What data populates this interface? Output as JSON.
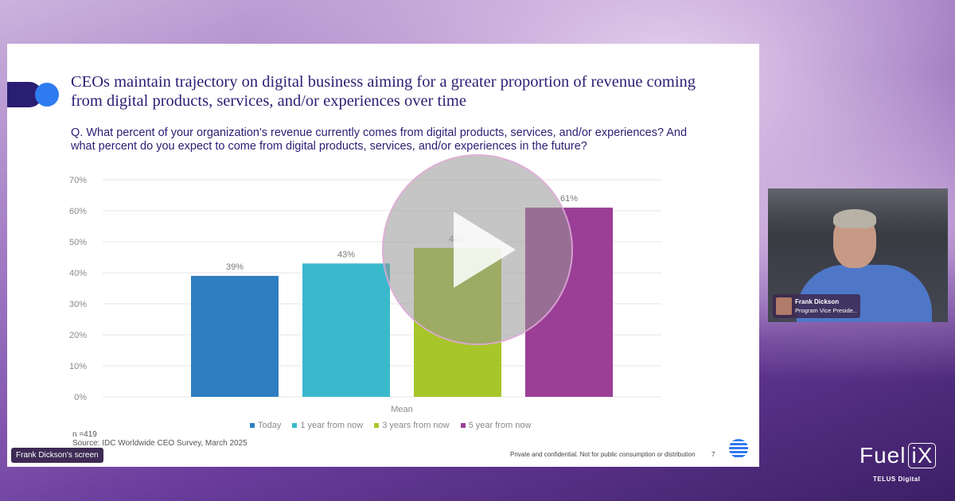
{
  "slide": {
    "title": "CEOs maintain trajectory on digital business aiming for a greater proportion of revenue coming from digital products, services, and/or experiences over time",
    "question": "Q. What percent of your organization's revenue currently comes from digital products, services, and/or experiences? And what percent do you expect to come from digital products, services, and/or experiences in the future?",
    "n": "n =419",
    "source": "Source: IDC Worldwide CEO Survey, March 2025",
    "confidential": "Private and confidential. Not for public consumption or distribution",
    "page": "7"
  },
  "chart_data": {
    "type": "bar",
    "title": "",
    "categories": [
      "Mean"
    ],
    "series": [
      {
        "name": "Today",
        "values": [
          39
        ],
        "label": "39%",
        "color": "#2e7ec1"
      },
      {
        "name": "1 year from now",
        "values": [
          43
        ],
        "label": "43%",
        "color": "#3bb9cc"
      },
      {
        "name": "3 years from now",
        "values": [
          48
        ],
        "label": "48%",
        "color": "#a7c62a"
      },
      {
        "name": "5 year from now",
        "values": [
          61
        ],
        "label": "61%",
        "color": "#9b3f96"
      }
    ],
    "ylim": [
      0,
      70
    ],
    "yticks": [
      "0%",
      "10%",
      "20%",
      "30%",
      "40%",
      "50%",
      "60%",
      "70%"
    ],
    "xlabel": "Mean",
    "ylabel": "",
    "legend": "bottom"
  },
  "legend": {
    "items": [
      {
        "label": "Today",
        "color": "#2e7ec1"
      },
      {
        "label": "1 year from now",
        "color": "#3bb9cc"
      },
      {
        "label": "3 years from now",
        "color": "#a7c62a"
      },
      {
        "label": "5 year from now",
        "color": "#9b3f96"
      }
    ]
  },
  "share": {
    "label": "Frank Dickson's screen"
  },
  "participant": {
    "name": "Frank Dickson",
    "role": "Program Vice Preside..."
  },
  "brand": {
    "name": "Fuel",
    "mark": "iX",
    "sub": "TELUS Digital"
  }
}
